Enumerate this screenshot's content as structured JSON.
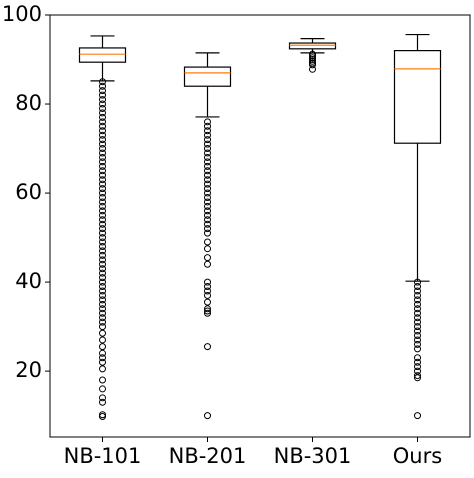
{
  "chart_data": {
    "type": "box",
    "categories": [
      "NB-101",
      "NB-201",
      "NB-301",
      "Ours"
    ],
    "median_color": "#ff7f0e",
    "ylim": [
      5.2,
      100
    ],
    "yticks": [
      20,
      40,
      60,
      80,
      100
    ],
    "boxes": [
      {
        "whisker_low": 85.2,
        "q1": 89.4,
        "median": 91.2,
        "q3": 92.6,
        "whisker_high": 95.3,
        "outliers": [
          85,
          84,
          83,
          82,
          81,
          80,
          79,
          78,
          77,
          76,
          75,
          74,
          73,
          72,
          71,
          70,
          69,
          68,
          67,
          66,
          65,
          64,
          63,
          62,
          61,
          60,
          59,
          58,
          57,
          56,
          55,
          54,
          53,
          52,
          51,
          50,
          49,
          48,
          47,
          46,
          45,
          44,
          43,
          42,
          41,
          40,
          39,
          38,
          37,
          36,
          35,
          34,
          33,
          32,
          31,
          30,
          28.5,
          27,
          25.5,
          24,
          23,
          22,
          20.5,
          18,
          16,
          14,
          13,
          10.2,
          9.8
        ]
      },
      {
        "whisker_low": 77.1,
        "q1": 84,
        "median": 87,
        "q3": 88.3,
        "whisker_high": 91.5,
        "outliers": [
          76,
          75,
          74,
          73,
          72,
          71,
          70,
          69,
          68,
          67,
          66,
          65,
          64,
          63,
          62,
          61,
          60,
          59,
          58,
          57,
          56,
          55,
          54,
          53,
          52,
          51,
          49,
          47.5,
          45.5,
          44,
          40,
          39,
          38,
          37,
          35.5,
          34,
          33.5,
          33,
          25.5,
          10
        ]
      },
      {
        "whisker_low": 91.5,
        "q1": 92.4,
        "median": 93.2,
        "q3": 93.7,
        "whisker_high": 94.7,
        "outliers": [
          91.2,
          90.8,
          90.4,
          90,
          89.6,
          89.2,
          88.8,
          87.8
        ]
      },
      {
        "whisker_low": 40.2,
        "q1": 71.2,
        "median": 87.9,
        "q3": 92,
        "whisker_high": 95.6,
        "outliers": [
          40,
          39,
          38,
          37,
          36,
          35,
          34,
          33,
          32,
          31,
          30,
          29,
          28,
          27,
          26,
          25,
          23,
          22,
          21,
          20,
          19,
          18.5,
          10
        ]
      }
    ]
  }
}
